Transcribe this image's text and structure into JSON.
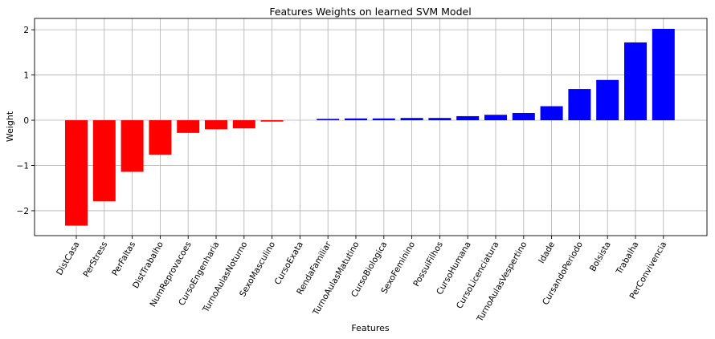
{
  "chart_data": {
    "type": "bar",
    "title": "Features Weights on learned SVM Model",
    "xlabel": "Features",
    "ylabel": "Weight",
    "ylim": [
      -2.55,
      2.25
    ],
    "yticks": [
      -2,
      -1,
      0,
      1,
      2
    ],
    "ytick_labels": [
      "−2",
      "−1",
      "0",
      "1",
      "2"
    ],
    "grid": true,
    "colors": {
      "negative": "#ff0000",
      "positive": "#0000ff"
    },
    "categories": [
      "DistCasa",
      "PerStress",
      "PerFaltas",
      "DistTrabalho",
      "NumReprovacoes",
      "CursoEngenharia",
      "TurnoAulasNoturno",
      "SexoMasculino",
      "CursoExata",
      "RendaFamiliar",
      "TurnoAulasMatutino",
      "CursoBiologica",
      "SexoFeminino",
      "PossuiFilhos",
      "CursoHumana",
      "CursoLicenciatura",
      "TurnoAulasVespertino",
      "Idade",
      "CursandoPeriodo",
      "Bolsista",
      "Trabalha",
      "PerConvivencia"
    ],
    "values": [
      -2.33,
      -1.79,
      -1.14,
      -0.76,
      -0.28,
      -0.2,
      -0.18,
      -0.03,
      0.0,
      0.03,
      0.04,
      0.04,
      0.05,
      0.05,
      0.09,
      0.12,
      0.16,
      0.31,
      0.69,
      0.89,
      1.72,
      2.02
    ]
  }
}
